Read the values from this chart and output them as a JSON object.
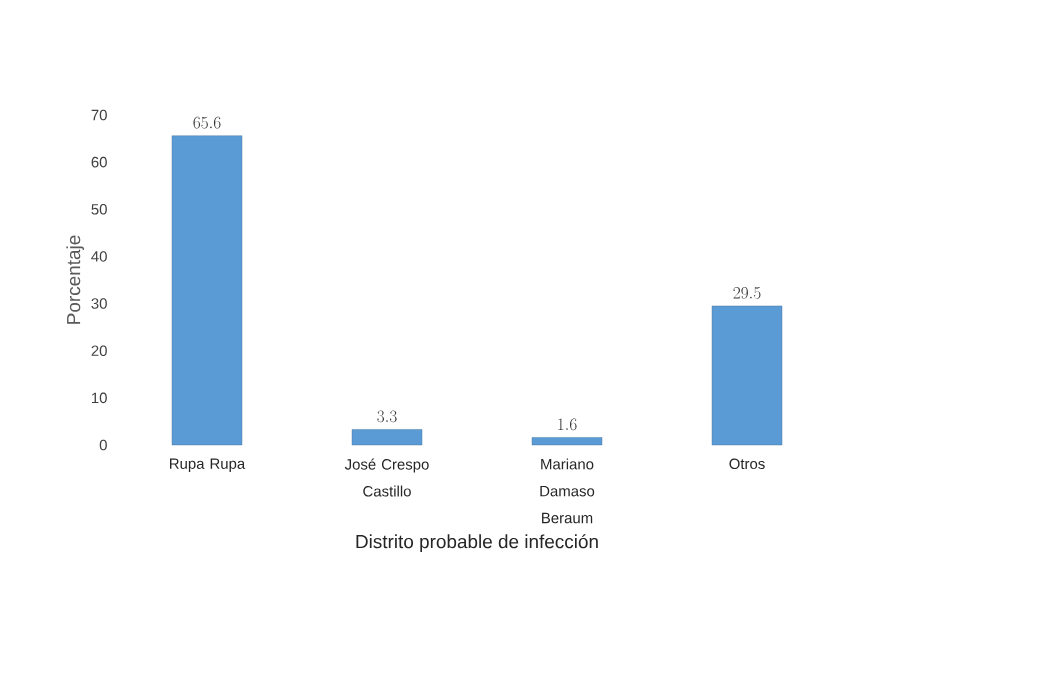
{
  "chart_data": {
    "type": "bar",
    "xlabel": "Distrito probable de infección",
    "ylabel": "Porcentaje",
    "categories": [
      "Rupa Rupa",
      "José Crespo Castillo",
      "Mariano Damaso Beraum",
      "Otros"
    ],
    "values": [
      65.6,
      3.3,
      1.6,
      29.5
    ],
    "color": "#5b9bd5",
    "ylim": [
      0,
      70
    ],
    "yticks": [
      0,
      10,
      20,
      30,
      40,
      50,
      60,
      70
    ],
    "grid": false,
    "data_labels": true
  }
}
